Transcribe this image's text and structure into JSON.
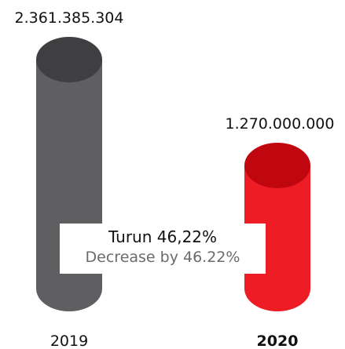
{
  "chart_data": {
    "type": "bar",
    "categories": [
      "2019",
      "2020"
    ],
    "values": [
      2361385304,
      1270000000
    ],
    "value_labels": [
      "2.361.385.304",
      "1.270.000.000"
    ],
    "bar_style": "cylinder",
    "colors": [
      {
        "body": "#5f5f61",
        "top": "#3f3f41"
      },
      {
        "body": "#ee1c25",
        "top": "#c0070f"
      }
    ],
    "highlighted_category": "2020",
    "annotation": {
      "line1": "Turun 46,22%",
      "line2": "Decrease by 46.22%"
    }
  }
}
